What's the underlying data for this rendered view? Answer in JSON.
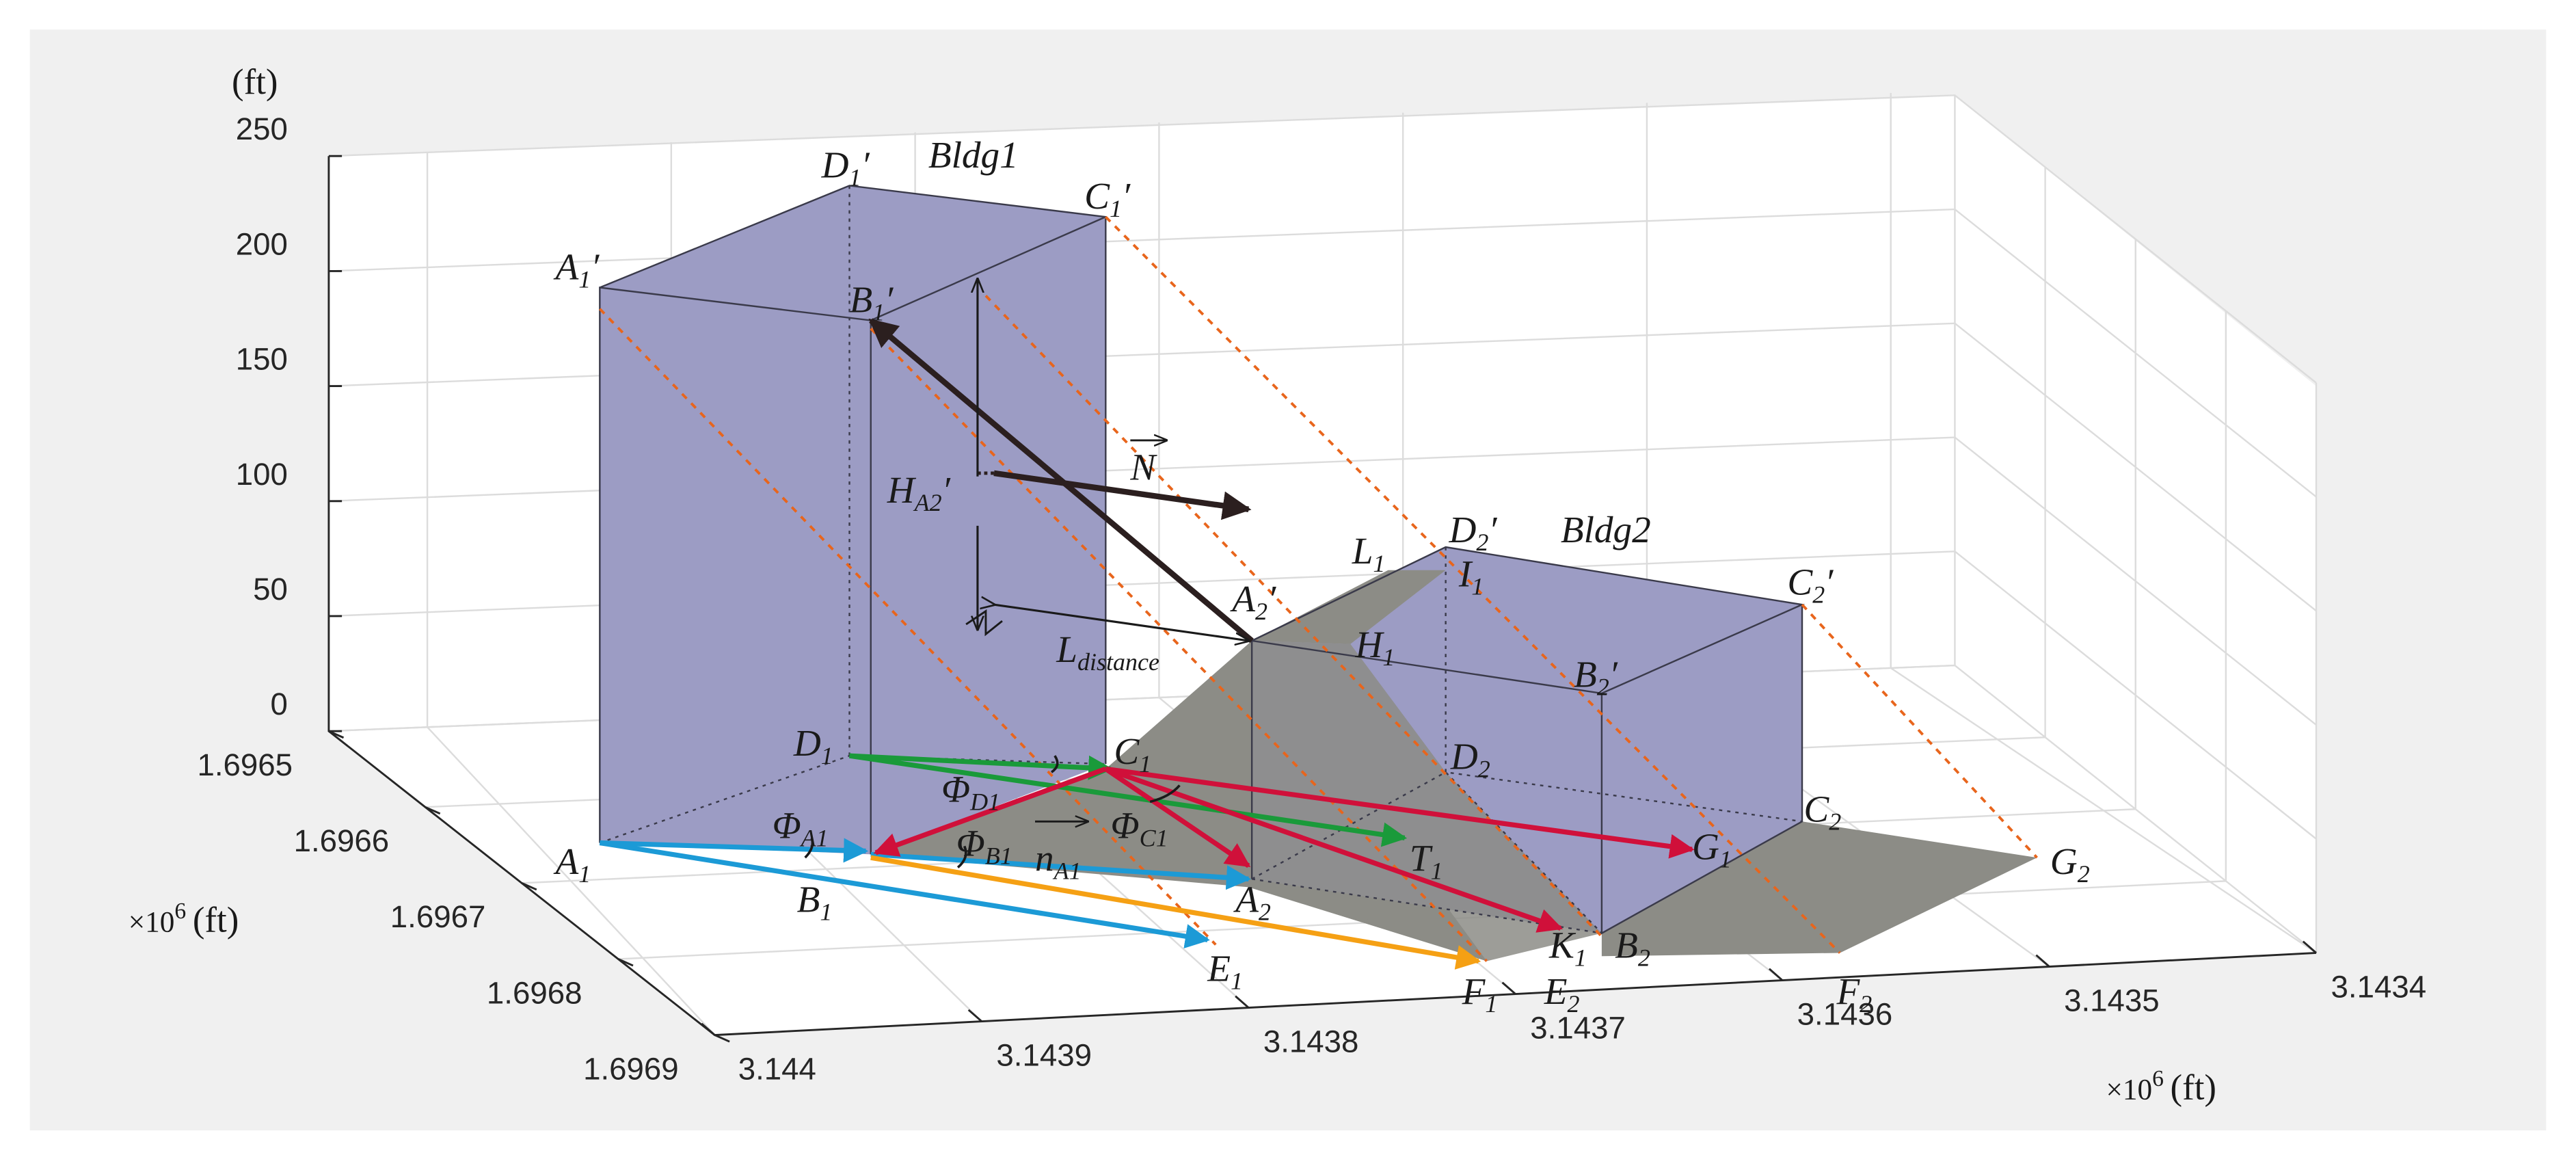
{
  "axes": {
    "z_unit": "(ft)",
    "z_ticks": [
      "0",
      "50",
      "100",
      "150",
      "200",
      "250"
    ],
    "y_ticks": [
      "1.6965",
      "1.6966",
      "1.6967",
      "1.6968",
      "1.6969"
    ],
    "y_unit": {
      "prefix": "×10",
      "exp": "6",
      "unit": "(ft)"
    },
    "x_ticks": [
      "3.144",
      "3.1439",
      "3.1438",
      "3.1437",
      "3.1436",
      "3.1435",
      "3.1434"
    ],
    "x_unit": {
      "prefix": "×10",
      "exp": "6",
      "unit": "(ft)"
    }
  },
  "buildings": [
    "Bldg1",
    "Bldg2"
  ],
  "labels": [
    {
      "base": "A",
      "sub": "1",
      "prime": "′"
    },
    {
      "base": "D",
      "sub": "1",
      "prime": "′"
    },
    {
      "base": "C",
      "sub": "1",
      "prime": "′"
    },
    {
      "base": "B",
      "sub": "1",
      "prime": "′"
    },
    {
      "base": "D",
      "sub": "2",
      "prime": "′"
    },
    {
      "base": "C",
      "sub": "2",
      "prime": "′"
    },
    {
      "base": "B",
      "sub": "2",
      "prime": "′"
    },
    {
      "base": "A",
      "sub": "2",
      "prime": "′"
    },
    {
      "base": "L",
      "sub": "1"
    },
    {
      "base": "I",
      "sub": "1"
    },
    {
      "base": "H",
      "sub": "1"
    },
    {
      "base": "H",
      "sub": "A2",
      "prime": "′"
    },
    {
      "base": "L",
      "sub": "distance"
    },
    {
      "base": "N"
    },
    {
      "base": "D",
      "sub": "1"
    },
    {
      "base": "C",
      "sub": "1"
    },
    {
      "base": "Φ",
      "sub": "D1"
    },
    {
      "base": "Φ",
      "sub": "A1"
    },
    {
      "base": "Φ",
      "sub": "C1"
    },
    {
      "base": "Φ",
      "sub": "B1"
    },
    {
      "base": "n",
      "sub": "A1"
    },
    {
      "base": "T",
      "sub": "1"
    },
    {
      "base": "G",
      "sub": "1"
    },
    {
      "base": "A",
      "sub": "1"
    },
    {
      "base": "B",
      "sub": "1"
    },
    {
      "base": "A",
      "sub": "2"
    },
    {
      "base": "K",
      "sub": "1"
    },
    {
      "base": "B",
      "sub": "2"
    },
    {
      "base": "E",
      "sub": "1"
    },
    {
      "base": "F",
      "sub": "1"
    },
    {
      "base": "E",
      "sub": "2"
    },
    {
      "base": "F",
      "sub": "2"
    },
    {
      "base": "G",
      "sub": "2"
    },
    {
      "base": "D",
      "sub": "2"
    },
    {
      "base": "C",
      "sub": "2"
    }
  ]
}
